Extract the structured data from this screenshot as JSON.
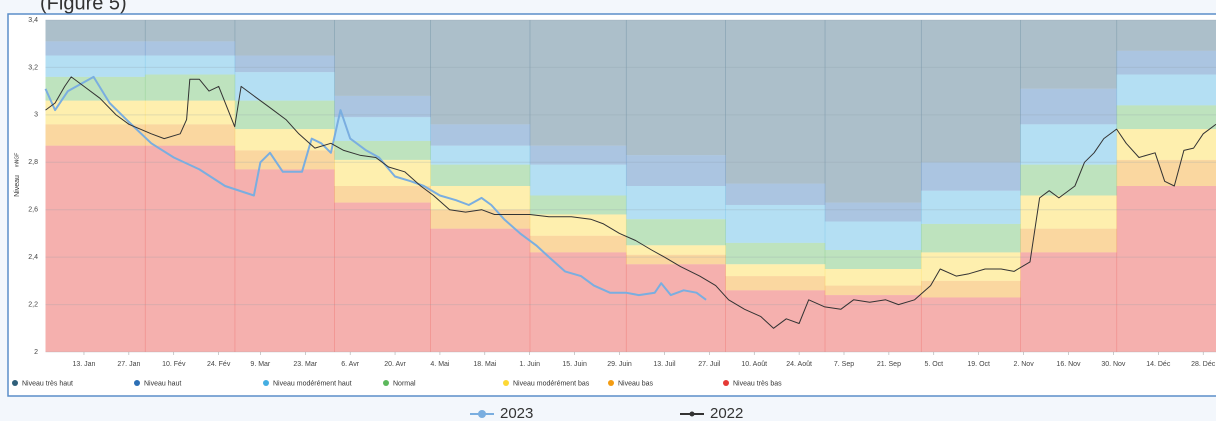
{
  "page_caption": "(Figure 5)",
  "chart_data": {
    "type": "line",
    "y_label": "Niveau",
    "y_unit": "mNGF",
    "xlim": [
      0,
      365
    ],
    "ylim": [
      2,
      3.4
    ],
    "yticks": [
      2,
      {
        "value": 2.2,
        "label": "2,2"
      },
      {
        "value": 2.4,
        "label": "2,4"
      },
      {
        "value": 2.6,
        "label": "2,6"
      },
      {
        "value": 2.8,
        "label": "2,8"
      },
      3,
      {
        "value": 3.2,
        "label": "3,2"
      },
      {
        "value": 3.4,
        "label": "3,4"
      }
    ],
    "xticks": [
      {
        "value": 12,
        "label": "13. Jan"
      },
      {
        "value": 26,
        "label": "27. Jan"
      },
      {
        "value": 40,
        "label": "10. Fév"
      },
      {
        "value": 54,
        "label": "24. Fév"
      },
      {
        "value": 67,
        "label": "9. Mar"
      },
      {
        "value": 81,
        "label": "23. Mar"
      },
      {
        "value": 95,
        "label": "6. Avr"
      },
      {
        "value": 109,
        "label": "20. Avr"
      },
      {
        "value": 123,
        "label": "4. Mai"
      },
      {
        "value": 137,
        "label": "18. Mai"
      },
      {
        "value": 151,
        "label": "1. Juin"
      },
      {
        "value": 165,
        "label": "15. Juin"
      },
      {
        "value": 179,
        "label": "29. Juin"
      },
      {
        "value": 193,
        "label": "13. Juil"
      },
      {
        "value": 207,
        "label": "27. Juil"
      },
      {
        "value": 221,
        "label": "10. Août"
      },
      {
        "value": 235,
        "label": "24. Août"
      },
      {
        "value": 249,
        "label": "7. Sep"
      },
      {
        "value": 263,
        "label": "21. Sep"
      },
      {
        "value": 277,
        "label": "5. Oct"
      },
      {
        "value": 291,
        "label": "19. Oct"
      },
      {
        "value": 305,
        "label": "2. Nov"
      },
      {
        "value": 319,
        "label": "16. Nov"
      },
      {
        "value": 333,
        "label": "30. Nov"
      },
      {
        "value": 347,
        "label": "14. Déc"
      },
      {
        "value": 361,
        "label": "28. Déc"
      }
    ],
    "grid": true,
    "bands": {
      "x": [
        0,
        31,
        59,
        90,
        120,
        151,
        181,
        212,
        243,
        273,
        304,
        334
      ],
      "levels": [
        {
          "name": "Niveau très haut",
          "color": "#2f5f7a",
          "values": [
            3.31,
            3.31,
            3.25,
            3.08,
            2.96,
            2.87,
            2.83,
            2.71,
            2.63,
            2.8,
            3.11,
            3.27
          ]
        },
        {
          "name": "Niveau haut",
          "color": "#2c6fb5",
          "values": [
            3.25,
            3.25,
            3.18,
            2.99,
            2.87,
            2.79,
            2.7,
            2.62,
            2.55,
            2.68,
            2.96,
            3.17
          ]
        },
        {
          "name": "Niveau modérément haut",
          "color": "#44aee2",
          "values": [
            3.16,
            3.17,
            3.06,
            2.89,
            2.79,
            2.66,
            2.56,
            2.46,
            2.43,
            2.54,
            2.79,
            3.04
          ]
        },
        {
          "name": "Normal",
          "color": "#5cb85c",
          "values": [
            3.06,
            3.06,
            2.94,
            2.81,
            2.7,
            2.58,
            2.45,
            2.37,
            2.35,
            2.42,
            2.66,
            2.94
          ]
        },
        {
          "name": "Niveau modérément bas",
          "color": "#fdd835",
          "values": [
            2.96,
            2.96,
            2.85,
            2.7,
            2.6,
            2.49,
            2.41,
            2.32,
            2.28,
            2.3,
            2.52,
            2.81
          ]
        },
        {
          "name": "Niveau bas",
          "color": "#f39c12",
          "values": [
            2.87,
            2.87,
            2.77,
            2.63,
            2.52,
            2.42,
            2.37,
            2.26,
            2.24,
            2.23,
            2.42,
            2.7
          ]
        },
        {
          "name": "Niveau très bas",
          "color": "#e53935"
        }
      ]
    },
    "series": [
      {
        "name": "2023",
        "color": "#7aaee0",
        "x": [
          0,
          3,
          7,
          15,
          20,
          26,
          33,
          40,
          48,
          56,
          65,
          67,
          70,
          74,
          80,
          83,
          86,
          89,
          92,
          95,
          100,
          104,
          109,
          114,
          118,
          123,
          128,
          132,
          136,
          139,
          143,
          148,
          153,
          157,
          162,
          167,
          171,
          176,
          181,
          185,
          190,
          192,
          195,
          199,
          203,
          206
        ],
        "values": [
          3.11,
          3.02,
          3.1,
          3.16,
          3.05,
          2.97,
          2.88,
          2.82,
          2.77,
          2.7,
          2.66,
          2.8,
          2.84,
          2.76,
          2.76,
          2.9,
          2.88,
          2.84,
          3.02,
          2.9,
          2.85,
          2.82,
          2.74,
          2.72,
          2.7,
          2.66,
          2.64,
          2.62,
          2.65,
          2.62,
          2.56,
          2.5,
          2.45,
          2.4,
          2.34,
          2.32,
          2.28,
          2.25,
          2.25,
          2.24,
          2.25,
          2.29,
          2.24,
          2.26,
          2.25,
          2.22
        ]
      },
      {
        "name": "2022",
        "color": "#333333",
        "x": [
          0,
          3,
          6,
          8,
          12,
          17,
          22,
          26,
          33,
          37,
          42,
          44,
          45,
          48,
          51,
          54,
          59,
          61,
          65,
          70,
          75,
          79,
          84,
          89,
          93,
          98,
          103,
          107,
          112,
          117,
          121,
          126,
          131,
          136,
          140,
          145,
          151,
          157,
          164,
          170,
          174,
          179,
          184,
          189,
          193,
          198,
          204,
          209,
          213,
          218,
          223,
          227,
          231,
          235,
          238,
          243,
          248,
          252,
          257,
          262,
          266,
          271,
          276,
          279,
          284,
          288,
          293,
          298,
          302,
          307,
          310,
          313,
          316,
          321,
          324,
          327,
          330,
          334,
          337,
          341,
          346,
          349,
          352,
          355,
          358,
          361,
          365
        ],
        "values": [
          3.02,
          3.05,
          3.12,
          3.16,
          3.12,
          3.07,
          3.0,
          2.96,
          2.92,
          2.9,
          2.92,
          2.98,
          3.15,
          3.15,
          3.1,
          3.12,
          2.95,
          3.12,
          3.08,
          3.03,
          2.98,
          2.92,
          2.86,
          2.88,
          2.85,
          2.83,
          2.82,
          2.78,
          2.76,
          2.7,
          2.66,
          2.6,
          2.59,
          2.6,
          2.58,
          2.58,
          2.58,
          2.57,
          2.57,
          2.56,
          2.54,
          2.5,
          2.47,
          2.43,
          2.4,
          2.36,
          2.32,
          2.28,
          2.22,
          2.18,
          2.15,
          2.1,
          2.14,
          2.12,
          2.22,
          2.19,
          2.18,
          2.22,
          2.21,
          2.22,
          2.2,
          2.22,
          2.28,
          2.35,
          2.32,
          2.33,
          2.35,
          2.35,
          2.34,
          2.38,
          2.65,
          2.68,
          2.65,
          2.7,
          2.8,
          2.84,
          2.9,
          2.94,
          2.88,
          2.82,
          2.84,
          2.72,
          2.7,
          2.85,
          2.86,
          2.92,
          2.96
        ]
      }
    ]
  }
}
